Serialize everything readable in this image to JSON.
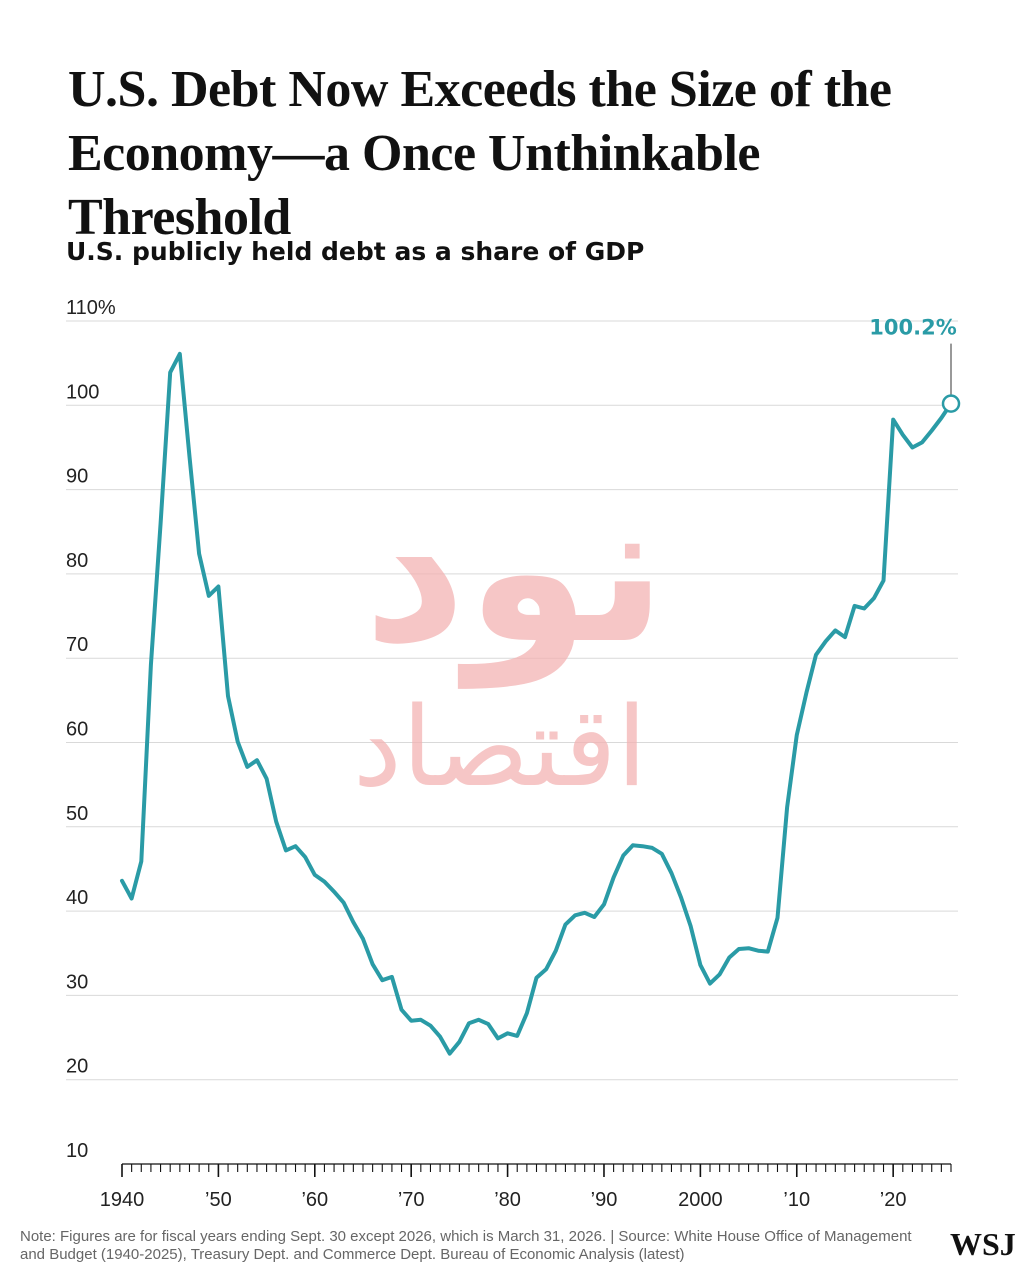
{
  "headline": "U.S. Debt Now Exceeds the Size of the Economy—a Once Unthinkable Threshold",
  "note": "Note: Figures are for fiscal years ending Sept. 30 except 2026, which is March 31, 2026. | Source: White House Office of Management and Budget (1940-2025), Treasury Dept. and Commerce Dept. Bureau of Economic Analysis (latest)",
  "logo": "WSJ",
  "watermark": "نود اقتصاد",
  "colors": {
    "line": "#2a9ba6",
    "grid": "#d9d9d9",
    "text": "#111111",
    "watermark": "#f3b3b3"
  },
  "chart_data": {
    "type": "line",
    "title": "U.S. publicly held debt as a share of GDP",
    "ylim": [
      10,
      110
    ],
    "xlim": [
      1940,
      2026
    ],
    "y_ticks": [
      10,
      20,
      30,
      40,
      50,
      60,
      70,
      80,
      90,
      100,
      110
    ],
    "y_tick_labels": [
      "10",
      "20",
      "30",
      "40",
      "50",
      "60",
      "70",
      "80",
      "90",
      "100",
      "110%"
    ],
    "x_ticks": [
      1940,
      1950,
      1960,
      1970,
      1980,
      1990,
      2000,
      2010,
      2020
    ],
    "x_tick_labels": [
      "1940",
      "’50",
      "’60",
      "’70",
      "’80",
      "’90",
      "2000",
      "’10",
      "’20"
    ],
    "grid": true,
    "annotation": {
      "x": 2026,
      "y": 100.2,
      "label": "100.2%"
    },
    "series": [
      {
        "x": [
          1940,
          1941,
          1942,
          1943,
          1944,
          1945,
          1946,
          1947,
          1948,
          1949,
          1950,
          1951,
          1952,
          1953,
          1954,
          1955,
          1956,
          1957,
          1958,
          1959,
          1960,
          1961,
          1962,
          1963,
          1964,
          1965,
          1966,
          1967,
          1968,
          1969,
          1970,
          1971,
          1972,
          1973,
          1974,
          1975,
          1976,
          1977,
          1978,
          1979,
          1980,
          1981,
          1982,
          1983,
          1984,
          1985,
          1986,
          1987,
          1988,
          1989,
          1990,
          1991,
          1992,
          1993,
          1994,
          1995,
          1996,
          1997,
          1998,
          1999,
          2000,
          2001,
          2002,
          2003,
          2004,
          2005,
          2006,
          2007,
          2008,
          2009,
          2010,
          2011,
          2012,
          2013,
          2014,
          2015,
          2016,
          2017,
          2018,
          2019,
          2020,
          2021,
          2022,
          2023,
          2024,
          2025,
          2026
        ],
        "values": [
          43.6,
          41.5,
          45.9,
          69.2,
          86.0,
          103.9,
          106.1,
          93.9,
          82.4,
          77.4,
          78.5,
          65.5,
          60.1,
          57.1,
          57.9,
          55.7,
          50.6,
          47.2,
          47.7,
          46.4,
          44.3,
          43.5,
          42.3,
          41.0,
          38.7,
          36.7,
          33.7,
          31.8,
          32.2,
          28.3,
          27.0,
          27.1,
          26.4,
          25.1,
          23.1,
          24.5,
          26.7,
          27.1,
          26.6,
          24.9,
          25.5,
          25.2,
          27.9,
          32.1,
          33.1,
          35.3,
          38.4,
          39.5,
          39.8,
          39.3,
          40.8,
          44.0,
          46.6,
          47.8,
          47.7,
          47.5,
          46.8,
          44.5,
          41.6,
          38.2,
          33.6,
          31.4,
          32.5,
          34.5,
          35.5,
          35.6,
          35.3,
          35.2,
          39.2,
          52.3,
          60.9,
          65.9,
          70.4,
          72.0,
          73.3,
          72.5,
          76.2,
          75.9,
          77.1,
          79.2,
          98.3,
          96.5,
          95.0,
          95.6,
          97.0,
          98.5,
          100.2
        ]
      }
    ]
  }
}
